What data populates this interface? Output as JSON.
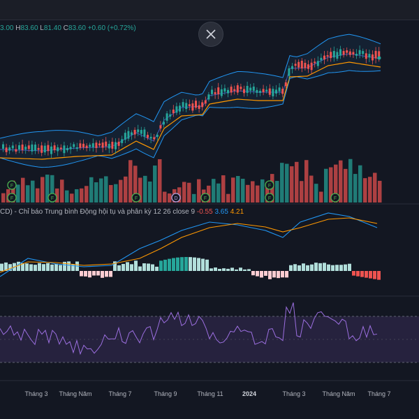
{
  "ohlc": {
    "open_partial": "3.00",
    "h_label": "H",
    "h": "83.60",
    "l_label": "L",
    "l": "81.40",
    "c_label": "C",
    "c": "83.60",
    "change": "+0.60 (+0.72%)"
  },
  "macd_legend": {
    "title": "CD) - Chỉ báo Trung bình Động hội tụ và phân kỳ",
    "params": "12 26 close 9",
    "hist": "-0.55",
    "macd": "3.65",
    "signal": "4.21"
  },
  "colors": {
    "up": "#26a69a",
    "down": "#ef5350",
    "bb": "#2196f3",
    "ma": "#ff9800",
    "rsi": "#9c6fe0",
    "bg": "#131722"
  },
  "icons": {
    "close": "close-icon",
    "event": "event-marker-icon"
  },
  "chart_data": [
    {
      "type": "candlestick",
      "ohlc_latest": {
        "high": 83.6,
        "low": 81.4,
        "close": 83.6,
        "change": 0.6,
        "change_pct": 0.72
      },
      "overlays": [
        "Bollinger Bands",
        "moving average"
      ]
    },
    {
      "type": "bar",
      "events": [
        "F",
        "F",
        "F",
        "F",
        "D",
        "F",
        "F",
        "F",
        "F"
      ]
    },
    {
      "type": "line",
      "params": "12 26 close 9",
      "latest": {
        "histogram": -0.55,
        "macd": 3.65,
        "signal": 4.21
      }
    },
    {
      "type": "line",
      "x_tick_labels": [
        "Tháng 3",
        "Tháng Năm",
        "Tháng 7",
        "Tháng 9",
        "Tháng 11",
        "2024",
        "Tháng 3",
        "Tháng Năm",
        "Tháng 7"
      ]
    }
  ]
}
